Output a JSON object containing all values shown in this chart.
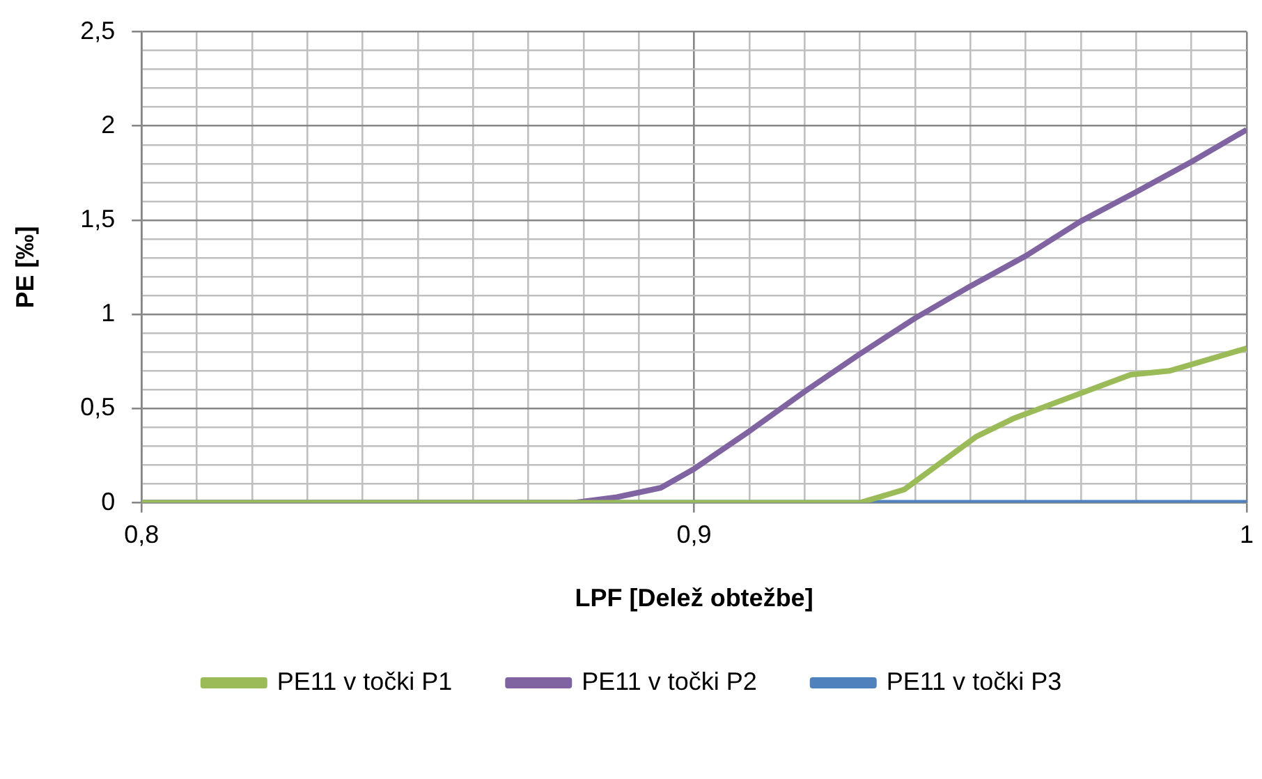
{
  "chart_data": {
    "type": "line",
    "xlabel": "LPF [Delež obtežbe]",
    "ylabel": "PE [‰]",
    "xlim": [
      0.8,
      1
    ],
    "ylim": [
      0,
      2.5
    ],
    "xticks": [
      {
        "value": 0.8,
        "label": "0,8"
      },
      {
        "value": 0.81,
        "label": null
      },
      {
        "value": 0.82,
        "label": null
      },
      {
        "value": 0.83,
        "label": null
      },
      {
        "value": 0.84,
        "label": null
      },
      {
        "value": 0.85,
        "label": null
      },
      {
        "value": 0.86,
        "label": null
      },
      {
        "value": 0.87,
        "label": null
      },
      {
        "value": 0.88,
        "label": null
      },
      {
        "value": 0.89,
        "label": null
      },
      {
        "value": 0.9,
        "label": "0,9"
      },
      {
        "value": 0.91,
        "label": null
      },
      {
        "value": 0.92,
        "label": null
      },
      {
        "value": 0.93,
        "label": null
      },
      {
        "value": 0.94,
        "label": null
      },
      {
        "value": 0.95,
        "label": null
      },
      {
        "value": 0.96,
        "label": null
      },
      {
        "value": 0.97,
        "label": null
      },
      {
        "value": 0.98,
        "label": null
      },
      {
        "value": 0.99,
        "label": null
      },
      1
    ],
    "yticks": [
      0,
      {
        "value": 0.1,
        "label": null
      },
      {
        "value": 0.2,
        "label": null
      },
      {
        "value": 0.3,
        "label": null
      },
      {
        "value": 0.4,
        "label": null
      },
      {
        "value": 0.5,
        "label": "0,5"
      },
      {
        "value": 0.6,
        "label": null
      },
      {
        "value": 0.7,
        "label": null
      },
      {
        "value": 0.8,
        "label": null
      },
      {
        "value": 0.9,
        "label": null
      },
      1,
      {
        "value": 1.1,
        "label": null
      },
      {
        "value": 1.2,
        "label": null
      },
      {
        "value": 1.3,
        "label": null
      },
      {
        "value": 1.4,
        "label": null
      },
      {
        "value": 1.5,
        "label": "1,5"
      },
      {
        "value": 1.6,
        "label": null
      },
      {
        "value": 1.7,
        "label": null
      },
      {
        "value": 1.8,
        "label": null
      },
      {
        "value": 1.9,
        "label": null
      },
      2,
      {
        "value": 2.1,
        "label": null
      },
      {
        "value": 2.2,
        "label": null
      },
      {
        "value": 2.3,
        "label": null
      },
      {
        "value": 2.4,
        "label": null
      },
      {
        "value": 2.5,
        "label": "2,5"
      }
    ],
    "grid": true,
    "legend": "bottom",
    "marker": "none",
    "line_style": "solid",
    "series": [
      {
        "name": "PE11 v točki P1",
        "color": "#9bbb59",
        "x": [
          0.8,
          0.93,
          0.938,
          0.951,
          0.958,
          0.979,
          0.986,
          1
        ],
        "values": [
          0,
          0,
          0.07,
          0.35,
          0.45,
          0.68,
          0.7,
          0.82
        ]
      },
      {
        "name": "PE11 v točki P2",
        "color": "#8064a2",
        "x": [
          0.8,
          0.878,
          0.886,
          0.894,
          0.9,
          0.91,
          0.92,
          0.93,
          0.94,
          0.95,
          0.96,
          0.97,
          0.98,
          0.99,
          1
        ],
        "values": [
          0,
          0,
          0.03,
          0.08,
          0.18,
          0.38,
          0.59,
          0.79,
          0.98,
          1.15,
          1.31,
          1.495,
          1.65,
          1.81,
          1.98
        ]
      },
      {
        "name": "PE11 v točki P3",
        "color": "#4f81bd",
        "x": [
          0.8,
          1
        ],
        "values": [
          0,
          0
        ]
      }
    ]
  }
}
